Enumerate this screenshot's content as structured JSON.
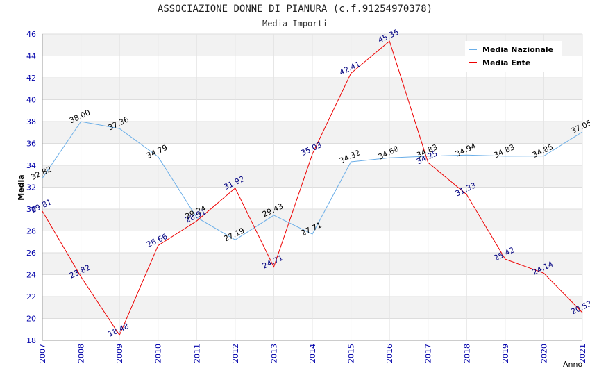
{
  "chart_data": {
    "type": "line",
    "title": "ASSOCIAZIONE DONNE DI PIANURA (c.f.91254970378)",
    "subtitle": "Media Importi",
    "xlabel": "Anno",
    "ylabel": "Media",
    "x": [
      "2007",
      "2008",
      "2009",
      "2010",
      "2011",
      "2012",
      "2013",
      "2014",
      "2015",
      "2016",
      "2017",
      "2018",
      "2019",
      "2020",
      "2021"
    ],
    "ylim": [
      18,
      46
    ],
    "yticks": [
      18,
      20,
      22,
      24,
      26,
      28,
      30,
      32,
      34,
      36,
      38,
      40,
      42,
      44,
      46
    ],
    "grid": true,
    "legend_position": "top-right",
    "series": [
      {
        "name": "Media Nazionale",
        "color": "#6aaee8",
        "label_color": "#000000",
        "values": [
          32.82,
          38.0,
          37.36,
          34.79,
          29.24,
          27.19,
          29.43,
          27.71,
          34.32,
          34.68,
          34.83,
          34.94,
          34.83,
          34.85,
          37.05
        ],
        "labels": [
          "32.82",
          "38.00",
          "37.36",
          "34.79",
          "29.24",
          "27.19",
          "29.43",
          "27.71",
          "34.32",
          "34.68",
          "34.83",
          "34.94",
          "34.83",
          "34.85",
          "37.05"
        ]
      },
      {
        "name": "Media Ente",
        "color": "#ee0000",
        "label_color": "#000080",
        "values": [
          29.81,
          23.82,
          18.48,
          26.66,
          28.91,
          31.92,
          24.71,
          35.03,
          42.41,
          45.35,
          34.25,
          31.33,
          25.42,
          24.14,
          20.53
        ],
        "labels": [
          "29.81",
          "23.82",
          "18.48",
          "26.66",
          "28.91",
          "31.92",
          "24.71",
          "35.03",
          "42.41",
          "45.35",
          "34.25",
          "31.33",
          "25.42",
          "24.14",
          "20.53"
        ]
      }
    ]
  }
}
